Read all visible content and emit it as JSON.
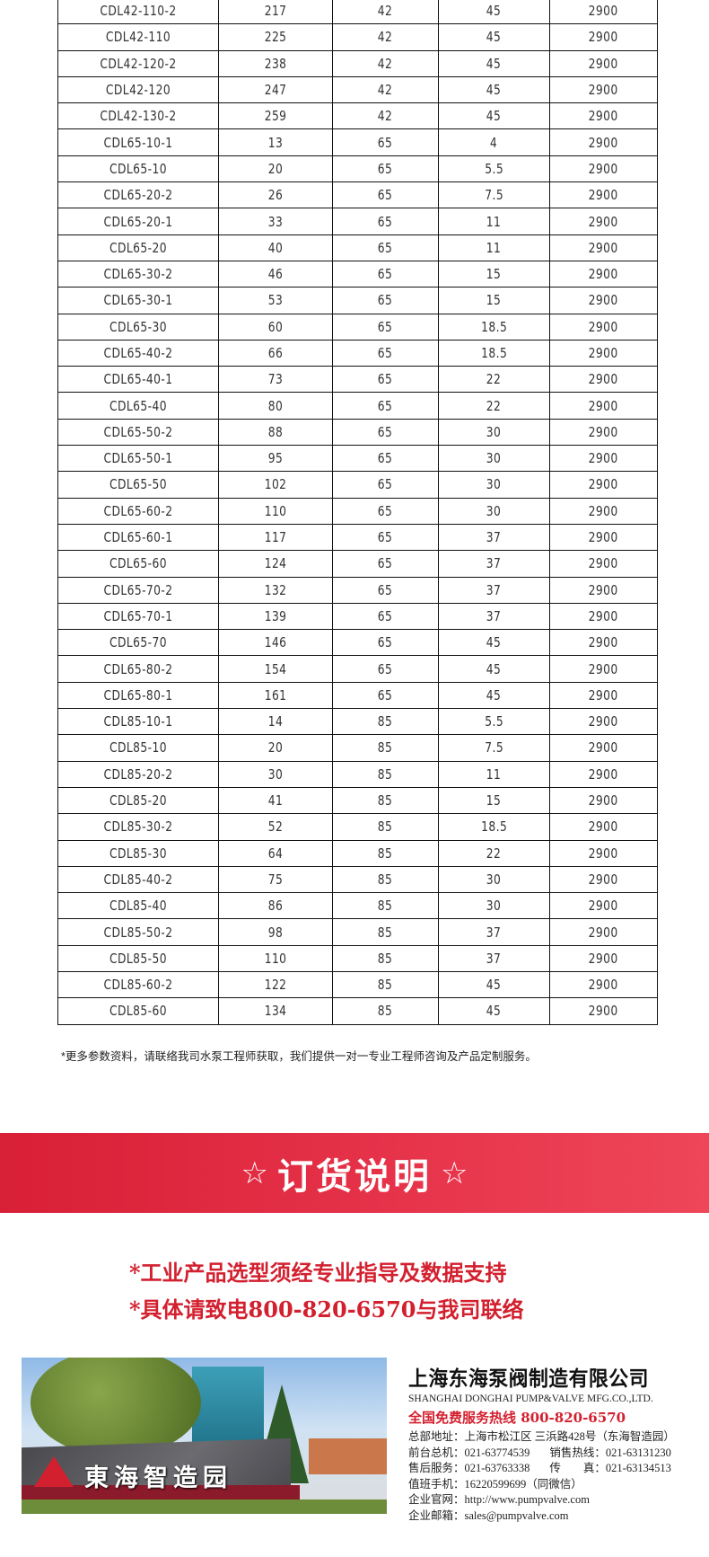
{
  "table": {
    "rows": [
      [
        "CDL42-110-2",
        "217",
        "42",
        "45",
        "2900"
      ],
      [
        "CDL42-110",
        "225",
        "42",
        "45",
        "2900"
      ],
      [
        "CDL42-120-2",
        "238",
        "42",
        "45",
        "2900"
      ],
      [
        "CDL42-120",
        "247",
        "42",
        "45",
        "2900"
      ],
      [
        "CDL42-130-2",
        "259",
        "42",
        "45",
        "2900"
      ],
      [
        "CDL65-10-1",
        "13",
        "65",
        "4",
        "2900"
      ],
      [
        "CDL65-10",
        "20",
        "65",
        "5.5",
        "2900"
      ],
      [
        "CDL65-20-2",
        "26",
        "65",
        "7.5",
        "2900"
      ],
      [
        "CDL65-20-1",
        "33",
        "65",
        "11",
        "2900"
      ],
      [
        "CDL65-20",
        "40",
        "65",
        "11",
        "2900"
      ],
      [
        "CDL65-30-2",
        "46",
        "65",
        "15",
        "2900"
      ],
      [
        "CDL65-30-1",
        "53",
        "65",
        "15",
        "2900"
      ],
      [
        "CDL65-30",
        "60",
        "65",
        "18.5",
        "2900"
      ],
      [
        "CDL65-40-2",
        "66",
        "65",
        "18.5",
        "2900"
      ],
      [
        "CDL65-40-1",
        "73",
        "65",
        "22",
        "2900"
      ],
      [
        "CDL65-40",
        "80",
        "65",
        "22",
        "2900"
      ],
      [
        "CDL65-50-2",
        "88",
        "65",
        "30",
        "2900"
      ],
      [
        "CDL65-50-1",
        "95",
        "65",
        "30",
        "2900"
      ],
      [
        "CDL65-50",
        "102",
        "65",
        "30",
        "2900"
      ],
      [
        "CDL65-60-2",
        "110",
        "65",
        "30",
        "2900"
      ],
      [
        "CDL65-60-1",
        "117",
        "65",
        "37",
        "2900"
      ],
      [
        "CDL65-60",
        "124",
        "65",
        "37",
        "2900"
      ],
      [
        "CDL65-70-2",
        "132",
        "65",
        "37",
        "2900"
      ],
      [
        "CDL65-70-1",
        "139",
        "65",
        "37",
        "2900"
      ],
      [
        "CDL65-70",
        "146",
        "65",
        "45",
        "2900"
      ],
      [
        "CDL65-80-2",
        "154",
        "65",
        "45",
        "2900"
      ],
      [
        "CDL65-80-1",
        "161",
        "65",
        "45",
        "2900"
      ],
      [
        "CDL85-10-1",
        "14",
        "85",
        "5.5",
        "2900"
      ],
      [
        "CDL85-10",
        "20",
        "85",
        "7.5",
        "2900"
      ],
      [
        "CDL85-20-2",
        "30",
        "85",
        "11",
        "2900"
      ],
      [
        "CDL85-20",
        "41",
        "85",
        "15",
        "2900"
      ],
      [
        "CDL85-30-2",
        "52",
        "85",
        "18.5",
        "2900"
      ],
      [
        "CDL85-30",
        "64",
        "85",
        "22",
        "2900"
      ],
      [
        "CDL85-40-2",
        "75",
        "85",
        "30",
        "2900"
      ],
      [
        "CDL85-40",
        "86",
        "85",
        "30",
        "2900"
      ],
      [
        "CDL85-50-2",
        "98",
        "85",
        "37",
        "2900"
      ],
      [
        "CDL85-50",
        "110",
        "85",
        "37",
        "2900"
      ],
      [
        "CDL85-60-2",
        "122",
        "85",
        "45",
        "2900"
      ],
      [
        "CDL85-60",
        "134",
        "85",
        "45",
        "2900"
      ]
    ]
  },
  "note": "*更多参数资料，请联络我司水泵工程师获取，我们提供一对一专业工程师咨询及产品定制服务。",
  "banner": {
    "star": "☆",
    "title": "订货说明",
    "color": "#e0293f"
  },
  "order_notes": [
    "*工业产品选型须经专业指导及数据支持",
    "*具体请致电800-820-6570与我司联络"
  ],
  "photo": {
    "sign_text": "東海智造园"
  },
  "company": {
    "name_cn": "上海东海泵阀制造有限公司",
    "name_en": "SHANGHAI DONGHAI PUMP&VALVE MFG.CO.,LTD.",
    "hotline": "全国免费服务热线  800-820-6570",
    "address": "总部地址：上海市松江区 三浜路428号（东海智造园）",
    "front_desk": "前台总机：021-63774539",
    "sales_hotline": "销售热线：021-63131230",
    "after_sales": "售后服务：021-63763338",
    "fax": "传　　真：021-63134513",
    "mobile": "值班手机：16220599699（同微信）",
    "website": "企业官网：http://www.pumpvalve.com",
    "email": "企业邮箱：sales@pumpvalve.com"
  }
}
